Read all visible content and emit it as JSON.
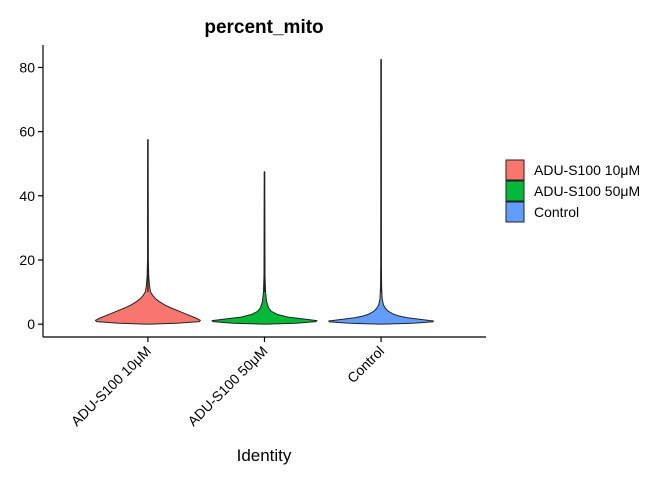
{
  "chart_data": {
    "type": "violin",
    "title": "percent_mito",
    "xlabel": "Identity",
    "ylabel": "",
    "ylim": [
      -4,
      87
    ],
    "yticks": [
      0,
      20,
      40,
      60,
      80
    ],
    "grid": false,
    "legend_position": "right",
    "categories": [
      "ADU-S100 10μM",
      "ADU-S100 50μM",
      "Control"
    ],
    "series": [
      {
        "name": "ADU-S100 10μM",
        "color": "#F8766D",
        "max": 57.5,
        "min": 0,
        "density": [
          [
            0,
            0.05
          ],
          [
            0.3,
            0.55
          ],
          [
            0.8,
            0.98
          ],
          [
            1.2,
            1.0
          ],
          [
            2,
            0.9
          ],
          [
            3,
            0.75
          ],
          [
            4,
            0.6
          ],
          [
            5,
            0.45
          ],
          [
            6,
            0.32
          ],
          [
            7,
            0.22
          ],
          [
            8,
            0.14
          ],
          [
            9,
            0.09
          ],
          [
            10,
            0.05
          ],
          [
            12,
            0.03
          ],
          [
            15,
            0.015
          ],
          [
            20,
            0.008
          ],
          [
            57.5,
            0.004
          ]
        ]
      },
      {
        "name": "ADU-S100 50μM",
        "color": "#00BA38",
        "max": 47.5,
        "min": 0,
        "density": [
          [
            0,
            0.05
          ],
          [
            0.3,
            0.6
          ],
          [
            0.8,
            0.98
          ],
          [
            1.1,
            1.0
          ],
          [
            1.6,
            0.75
          ],
          [
            2.2,
            0.45
          ],
          [
            3,
            0.25
          ],
          [
            4,
            0.13
          ],
          [
            5,
            0.08
          ],
          [
            7,
            0.04
          ],
          [
            10,
            0.02
          ],
          [
            15,
            0.01
          ],
          [
            47.5,
            0.004
          ]
        ]
      },
      {
        "name": "Control",
        "color": "#619CFF",
        "max": 82.5,
        "min": 0,
        "density": [
          [
            0,
            0.05
          ],
          [
            0.3,
            0.6
          ],
          [
            0.7,
            0.98
          ],
          [
            1,
            1.0
          ],
          [
            1.5,
            0.75
          ],
          [
            2,
            0.5
          ],
          [
            2.5,
            0.35
          ],
          [
            3,
            0.25
          ],
          [
            4,
            0.14
          ],
          [
            5,
            0.08
          ],
          [
            6,
            0.045
          ],
          [
            8,
            0.02
          ],
          [
            12,
            0.01
          ],
          [
            20,
            0.006
          ],
          [
            82.5,
            0.004
          ]
        ]
      }
    ]
  }
}
